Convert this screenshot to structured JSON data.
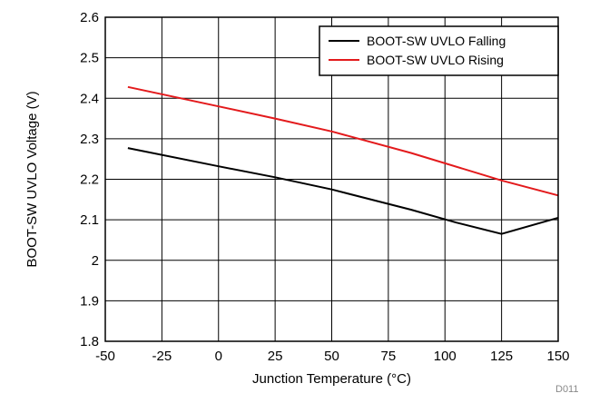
{
  "chart_data": {
    "type": "line",
    "title": "",
    "xlabel": "Junction Temperature (°C)",
    "ylabel": "BOOT-SW UVLO Voltage (V)",
    "xlim": [
      -50,
      150
    ],
    "ylim": [
      1.8,
      2.6
    ],
    "x_ticks": [
      -50,
      -25,
      0,
      25,
      50,
      75,
      100,
      125,
      150
    ],
    "y_ticks": [
      1.8,
      1.9,
      2.0,
      2.1,
      2.2,
      2.3,
      2.4,
      2.5,
      2.6
    ],
    "x_tick_labels": [
      "-50",
      "-25",
      "0",
      "25",
      "50",
      "75",
      "100",
      "125",
      "150"
    ],
    "y_tick_labels": [
      "1.8",
      "1.9",
      "2",
      "2.1",
      "2.2",
      "2.3",
      "2.4",
      "2.5",
      "2.6"
    ],
    "grid": true,
    "legend_position": "top-right",
    "series": [
      {
        "name": "BOOT-SW UVLO Falling",
        "color": "#000000",
        "x": [
          -40,
          0,
          25,
          50,
          85,
          105,
          125,
          150
        ],
        "y": [
          2.277,
          2.232,
          2.205,
          2.175,
          2.125,
          2.093,
          2.065,
          2.105
        ]
      },
      {
        "name": "BOOT-SW UVLO Rising",
        "color": "#e31a1c",
        "x": [
          -40,
          0,
          25,
          50,
          85,
          125,
          150
        ],
        "y": [
          2.428,
          2.38,
          2.35,
          2.318,
          2.265,
          2.197,
          2.16
        ]
      }
    ],
    "annotation": "D011"
  }
}
